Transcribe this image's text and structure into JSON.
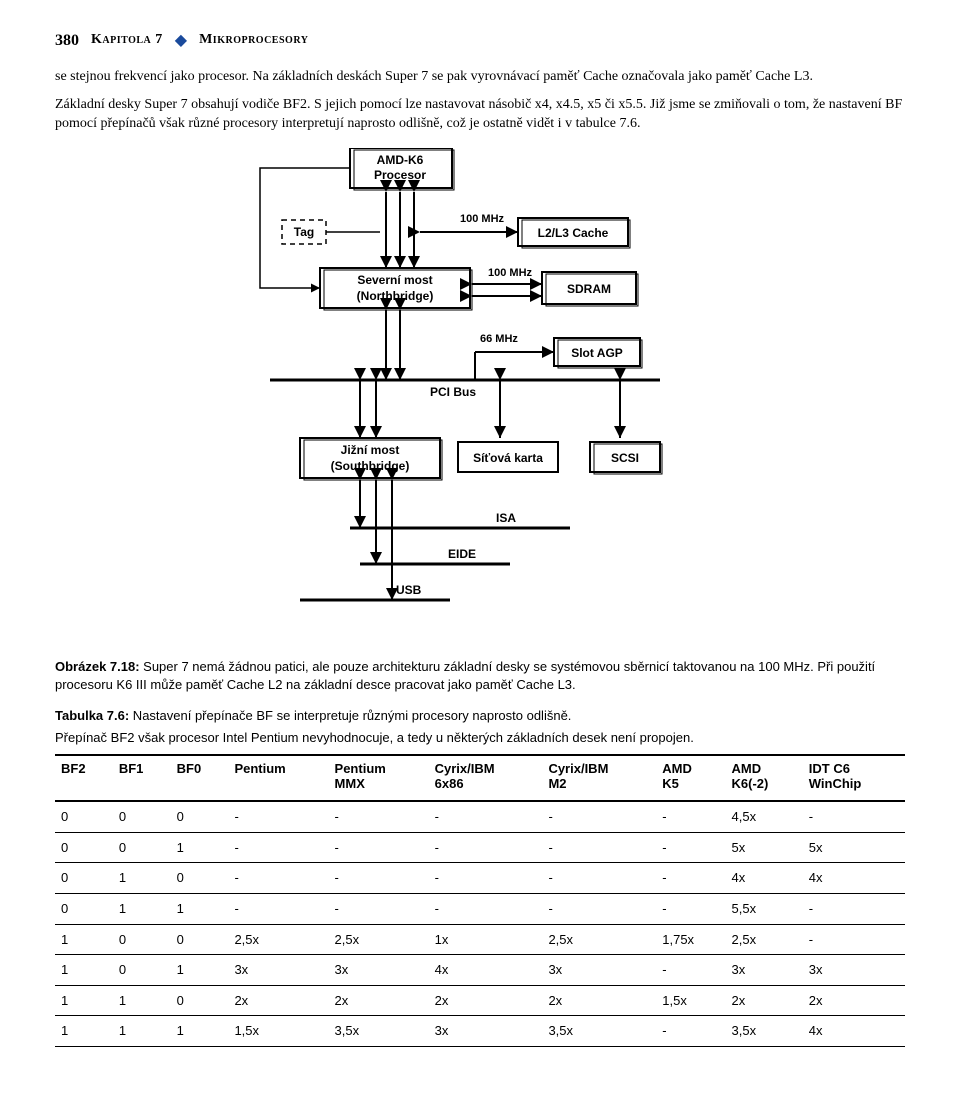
{
  "header": {
    "page_number": "380",
    "chapter_label": "Kapitola 7",
    "diamond": "◆",
    "section_title": "Mikroprocesory"
  },
  "para1": "se stejnou frekvencí jako procesor. Na základních deskách Super 7 se pak vyrovnávací paměť Cache označovala jako paměť Cache L3.",
  "para2": "Základní desky Super 7 obsahují vodiče BF2. S jejich pomocí lze nastavovat násobič x4, x4.5, x5 či x5.5. Již jsme se zmiňovali o tom, že nastavení BF pomocí přepínačů však různé procesory interpretují naprosto odlišně, což je ostatně vidět i v tabulce 7.6.",
  "diagram": {
    "amd_k6_line1": "AMD-K6",
    "amd_k6_line2": "Procesor",
    "tag": "Tag",
    "l2l3": "L2/L3 Cache",
    "mhz100a": "100 MHz",
    "north_line1": "Severní most",
    "north_line2": "(Northbridge)",
    "mhz100b": "100 MHz",
    "sdram": "SDRAM",
    "mhz66": "66 MHz",
    "slot_agp": "Slot AGP",
    "pci_bus": "PCI Bus",
    "south_line1": "Jižní most",
    "south_line2": "(Southbridge)",
    "netcard": "Síťová karta",
    "scsi": "SCSI",
    "isa": "ISA",
    "eide": "EIDE",
    "usb": "USB"
  },
  "figure_caption_bold": "Obrázek 7.18:",
  "figure_caption_rest": " Super 7 nemá žádnou patici, ale pouze architekturu základní desky se systémovou sběrnicí taktovanou na 100 MHz. Při použití procesoru K6 III může paměť Cache L2 na základní desce pracovat jako paměť Cache L3.",
  "table_caption_bold": "Tabulka 7.6:",
  "table_caption_rest": " Nastavení přepínače BF se interpretuje různými procesory naprosto odlišně.",
  "table_subcaption": "Přepínač BF2 však procesor Intel Pentium nevyhodnocuje, a tedy u některých základních desek není propojen.",
  "table": {
    "columns": [
      "BF2",
      "BF1",
      "BF0",
      "Pentium",
      "Pentium MMX",
      "Cyrix/IBM 6x86",
      "Cyrix/IBM M2",
      "AMD K5",
      "AMD K6(-2)",
      "IDT C6 WinChip"
    ],
    "col_line1": [
      "BF2",
      "BF1",
      "BF0",
      "Pentium",
      "Pentium",
      "Cyrix/IBM",
      "Cyrix/IBM",
      "AMD",
      "AMD",
      "IDT C6"
    ],
    "col_line2": [
      "",
      "",
      "",
      "",
      "MMX",
      "6x86",
      "M2",
      "K5",
      "K6(-2)",
      "WinChip"
    ],
    "rows": [
      [
        "0",
        "0",
        "0",
        "-",
        "-",
        "-",
        "-",
        "-",
        "4,5x",
        "-"
      ],
      [
        "0",
        "0",
        "1",
        "-",
        "-",
        "-",
        "-",
        "-",
        "5x",
        "5x"
      ],
      [
        "0",
        "1",
        "0",
        "-",
        "-",
        "-",
        "-",
        "-",
        "4x",
        "4x"
      ],
      [
        "0",
        "1",
        "1",
        "-",
        "-",
        "-",
        "-",
        "-",
        "5,5x",
        "-"
      ],
      [
        "1",
        "0",
        "0",
        "2,5x",
        "2,5x",
        "1x",
        "2,5x",
        "1,75x",
        "2,5x",
        "-"
      ],
      [
        "1",
        "0",
        "1",
        "3x",
        "3x",
        "4x",
        "3x",
        "-",
        "3x",
        "3x"
      ],
      [
        "1",
        "1",
        "0",
        "2x",
        "2x",
        "2x",
        "2x",
        "1,5x",
        "2x",
        "2x"
      ],
      [
        "1",
        "1",
        "1",
        "1,5x",
        "3,5x",
        "3x",
        "3,5x",
        "-",
        "3,5x",
        "4x"
      ]
    ]
  },
  "style": {
    "diamond_color": "#1a4a9c",
    "border_color": "#000000"
  }
}
